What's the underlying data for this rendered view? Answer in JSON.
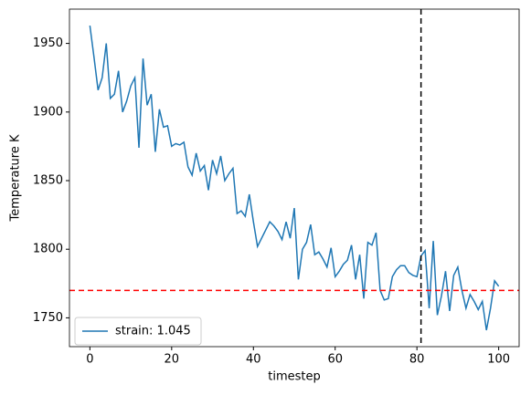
{
  "chart_data": {
    "type": "line",
    "xlabel": "timestep",
    "ylabel": "Temperature K",
    "x": [
      0,
      1,
      2,
      3,
      4,
      5,
      6,
      7,
      8,
      9,
      10,
      11,
      12,
      13,
      14,
      15,
      16,
      17,
      18,
      19,
      20,
      21,
      22,
      23,
      24,
      25,
      26,
      27,
      28,
      29,
      30,
      31,
      32,
      33,
      34,
      35,
      36,
      37,
      38,
      39,
      40,
      41,
      42,
      43,
      44,
      45,
      46,
      47,
      48,
      49,
      50,
      51,
      52,
      53,
      54,
      55,
      56,
      57,
      58,
      59,
      60,
      61,
      62,
      63,
      64,
      65,
      66,
      67,
      68,
      69,
      70,
      71,
      72,
      73,
      74,
      75,
      76,
      77,
      78,
      79,
      80,
      81,
      82,
      83,
      84,
      85,
      86,
      87,
      88,
      89,
      90,
      91,
      92,
      93,
      94,
      95,
      96,
      97,
      98,
      99,
      100
    ],
    "series": [
      {
        "name": "strain: 1.045",
        "color": "#1f77b4",
        "values": [
          1963,
          1940,
          1916,
          1925,
          1950,
          1910,
          1913,
          1930,
          1900,
          1908,
          1919,
          1925,
          1874,
          1939,
          1905,
          1913,
          1871,
          1902,
          1889,
          1890,
          1875,
          1877,
          1876,
          1878,
          1860,
          1854,
          1870,
          1857,
          1861,
          1843,
          1865,
          1855,
          1868,
          1850,
          1855,
          1859,
          1826,
          1828,
          1824,
          1840,
          1820,
          1802,
          1808,
          1814,
          1820,
          1817,
          1813,
          1807,
          1820,
          1808,
          1830,
          1778,
          1800,
          1805,
          1818,
          1796,
          1798,
          1793,
          1787,
          1801,
          1780,
          1784,
          1789,
          1792,
          1803,
          1778,
          1796,
          1764,
          1805,
          1803,
          1812,
          1770,
          1763,
          1764,
          1780,
          1785,
          1788,
          1788,
          1783,
          1781,
          1780,
          1795,
          1799,
          1757,
          1806,
          1752,
          1766,
          1784,
          1755,
          1781,
          1787,
          1770,
          1757,
          1767,
          1762,
          1756,
          1762,
          1741,
          1757,
          1777,
          1773
        ]
      }
    ],
    "hlines": [
      {
        "value": 1770,
        "color": "#ff0000"
      }
    ],
    "vlines": [
      {
        "value": 81,
        "color": "#000000"
      }
    ],
    "xlim": [
      -5,
      105
    ],
    "ylim": [
      1729,
      1975
    ],
    "xticks": [
      0,
      20,
      40,
      60,
      80,
      100
    ],
    "yticks": [
      1750,
      1800,
      1850,
      1900,
      1950
    ],
    "legend": "lower left"
  }
}
